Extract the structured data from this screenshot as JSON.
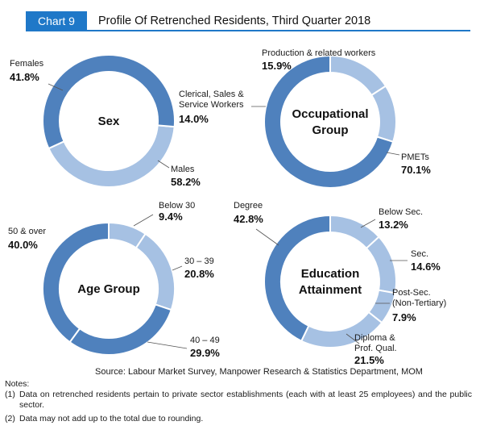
{
  "header": {
    "tag": "Chart 9",
    "title": "Profile Of Retrenched Residents, Third Quarter 2018"
  },
  "colors": {
    "dark": "#4f81bd",
    "light": "#a6c1e3",
    "accent": "#1f78c8"
  },
  "chart_data": [
    {
      "type": "pie",
      "center_label": [
        "Sex"
      ],
      "slices": [
        {
          "label": [
            "Females"
          ],
          "value": 41.8,
          "tone": "light"
        },
        {
          "label": [
            "Males"
          ],
          "value": 58.2,
          "tone": "dark"
        }
      ]
    },
    {
      "type": "pie",
      "center_label": [
        "Occupational",
        "Group"
      ],
      "slices": [
        {
          "label": [
            "Production & related workers"
          ],
          "value": 15.9,
          "tone": "light"
        },
        {
          "label": [
            "Clerical, Sales &",
            "Service Workers"
          ],
          "value": 14.0,
          "tone": "light"
        },
        {
          "label": [
            "PMETs"
          ],
          "value": 70.1,
          "tone": "dark"
        }
      ]
    },
    {
      "type": "pie",
      "center_label": [
        "Age Group"
      ],
      "slices": [
        {
          "label": [
            "Below 30"
          ],
          "value": 9.4,
          "tone": "light"
        },
        {
          "label": [
            "30 – 39"
          ],
          "value": 20.8,
          "tone": "light"
        },
        {
          "label": [
            "40 – 49"
          ],
          "value": 29.9,
          "tone": "dark"
        },
        {
          "label": [
            "50 & over"
          ],
          "value": 40.0,
          "tone": "dark"
        }
      ]
    },
    {
      "type": "pie",
      "center_label": [
        "Education",
        "Attainment"
      ],
      "slices": [
        {
          "label": [
            "Below Sec."
          ],
          "value": 13.2,
          "tone": "light"
        },
        {
          "label": [
            "Sec."
          ],
          "value": 14.6,
          "tone": "light"
        },
        {
          "label": [
            "Post-Sec.",
            "(Non-Tertiary)"
          ],
          "value": 7.9,
          "tone": "light"
        },
        {
          "label": [
            "Diploma &",
            "Prof. Qual."
          ],
          "value": 21.5,
          "tone": "light"
        },
        {
          "label": [
            "Degree"
          ],
          "value": 42.8,
          "tone": "dark"
        }
      ]
    }
  ],
  "source": "Source: Labour Market Survey, Manpower Research & Statistics Department, MOM",
  "notes": {
    "heading": "Notes:",
    "items": [
      {
        "num": "(1)",
        "text": "Data on retrenched residents pertain to private sector establishments (each with at least 25 employees) and the public sector."
      },
      {
        "num": "(2)",
        "text": "Data may not add up to the total due to rounding."
      }
    ]
  }
}
